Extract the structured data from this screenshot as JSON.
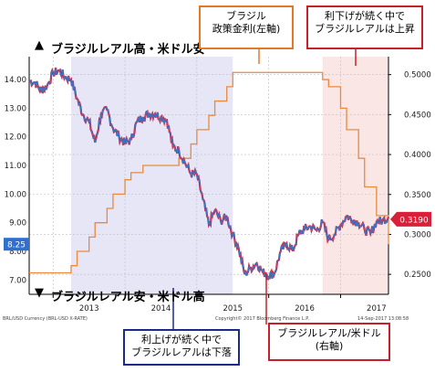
{
  "annotations": {
    "top_headline": "ブラジルレアル高・米ドル安",
    "bottom_headline": "ブラジルレアル安・米ドル高",
    "top_arrow_icon": "▲",
    "bottom_arrow_icon": "▼",
    "policy_rate_box": [
      "ブラジル",
      "政策金利(左軸)"
    ],
    "rate_cut_box": [
      "利下げが続く中で",
      "ブラジルレアルは上昇"
    ],
    "rate_hike_box": [
      "利上げが続く中で",
      "ブラジルレアルは下落"
    ],
    "fx_box": [
      "ブラジルレアル/米ドル",
      "(右軸)"
    ]
  },
  "footer": {
    "left_text": "BRL/USD Currency (BRL-USD X-RATE)",
    "center_text": "Copyright© 2017 Bloomberg Finance L.P.",
    "right_text": "14-Sep-2017 13:08:58"
  },
  "chart_data": {
    "type": "line",
    "x_axis": {
      "tick_labels": [
        "2013",
        "2014",
        "2015",
        "2016",
        "2017"
      ],
      "range": [
        "2012-09",
        "2017-09"
      ]
    },
    "left_axis": {
      "range": [
        6.5,
        14.8
      ],
      "tick_labels": [
        "14.00",
        "13.00",
        "12.00",
        "11.00",
        "10.00",
        "9.00",
        "8.00",
        "7.00"
      ],
      "tick_values": [
        14,
        13,
        12,
        11,
        10,
        9,
        8,
        7
      ],
      "current_value_label": "8.25",
      "current_value": 8.25
    },
    "right_axis": {
      "range": [
        0.225,
        0.5225
      ],
      "tick_labels": [
        "0.5000",
        "0.4500",
        "0.4000",
        "0.3500",
        "0.3000",
        "0.2500"
      ],
      "tick_values": [
        0.5,
        0.45,
        0.4,
        0.35,
        0.3,
        0.25
      ],
      "current_value_label": "0.3190",
      "current_value": 0.319
    },
    "grid": true,
    "shaded_periods": [
      {
        "start": "2013-04",
        "end": "2015-07",
        "color": "#e6e6f7"
      },
      {
        "start": "2016-10",
        "end": "2017-09",
        "color": "#fbe6e6"
      }
    ],
    "series": [
      {
        "axis": "left",
        "color": "#e98a3c",
        "style": "step",
        "points": [
          [
            "2012-09",
            7.25
          ],
          [
            "2013-04",
            7.5
          ],
          [
            "2013-05",
            8.0
          ],
          [
            "2013-07",
            8.5
          ],
          [
            "2013-08",
            9.0
          ],
          [
            "2013-10",
            9.5
          ],
          [
            "2013-11",
            10.0
          ],
          [
            "2014-01",
            10.5
          ],
          [
            "2014-02",
            10.75
          ],
          [
            "2014-04",
            11.0
          ],
          [
            "2014-10",
            11.25
          ],
          [
            "2014-12",
            11.75
          ],
          [
            "2015-01",
            12.25
          ],
          [
            "2015-03",
            12.75
          ],
          [
            "2015-04",
            13.25
          ],
          [
            "2015-06",
            13.75
          ],
          [
            "2015-07",
            14.25
          ],
          [
            "2016-10",
            14.0
          ],
          [
            "2016-11",
            13.75
          ],
          [
            "2017-01",
            13.0
          ],
          [
            "2017-02",
            12.25
          ],
          [
            "2017-04",
            11.25
          ],
          [
            "2017-05",
            10.25
          ],
          [
            "2017-07",
            9.25
          ],
          [
            "2017-09",
            8.25
          ]
        ]
      },
      {
        "axis": "right",
        "color": "#2e7bcf",
        "highlight_color": "#d8203a",
        "style": "line",
        "points": [
          [
            "2012-09",
            0.492
          ],
          [
            "2012-10",
            0.49
          ],
          [
            "2012-11",
            0.48
          ],
          [
            "2012-12",
            0.486
          ],
          [
            "2013-01",
            0.502
          ],
          [
            "2013-02",
            0.505
          ],
          [
            "2013-03",
            0.497
          ],
          [
            "2013-04",
            0.494
          ],
          [
            "2013-05",
            0.47
          ],
          [
            "2013-06",
            0.45
          ],
          [
            "2013-07",
            0.441
          ],
          [
            "2013-08",
            0.415
          ],
          [
            "2013-09",
            0.45
          ],
          [
            "2013-10",
            0.456
          ],
          [
            "2013-11",
            0.433
          ],
          [
            "2013-12",
            0.423
          ],
          [
            "2014-01",
            0.414
          ],
          [
            "2014-02",
            0.418
          ],
          [
            "2014-03",
            0.441
          ],
          [
            "2014-04",
            0.447
          ],
          [
            "2014-05",
            0.451
          ],
          [
            "2014-06",
            0.451
          ],
          [
            "2014-07",
            0.447
          ],
          [
            "2014-08",
            0.443
          ],
          [
            "2014-09",
            0.41
          ],
          [
            "2014-10",
            0.405
          ],
          [
            "2014-11",
            0.39
          ],
          [
            "2014-12",
            0.376
          ],
          [
            "2015-01",
            0.375
          ],
          [
            "2015-02",
            0.344
          ],
          [
            "2015-03",
            0.312
          ],
          [
            "2015-04",
            0.33
          ],
          [
            "2015-05",
            0.317
          ],
          [
            "2015-06",
            0.322
          ],
          [
            "2015-07",
            0.3
          ],
          [
            "2015-08",
            0.282
          ],
          [
            "2015-09",
            0.25
          ],
          [
            "2015-10",
            0.258
          ],
          [
            "2015-11",
            0.264
          ],
          [
            "2015-12",
            0.253
          ],
          [
            "2016-01",
            0.248
          ],
          [
            "2016-02",
            0.252
          ],
          [
            "2016-03",
            0.279
          ],
          [
            "2016-04",
            0.288
          ],
          [
            "2016-05",
            0.28
          ],
          [
            "2016-06",
            0.3
          ],
          [
            "2016-07",
            0.307
          ],
          [
            "2016-08",
            0.31
          ],
          [
            "2016-09",
            0.305
          ],
          [
            "2016-10",
            0.315
          ],
          [
            "2016-11",
            0.294
          ],
          [
            "2016-12",
            0.3
          ],
          [
            "2017-01",
            0.312
          ],
          [
            "2017-02",
            0.323
          ],
          [
            "2017-03",
            0.318
          ],
          [
            "2017-04",
            0.315
          ],
          [
            "2017-05",
            0.306
          ],
          [
            "2017-06",
            0.301
          ],
          [
            "2017-07",
            0.316
          ],
          [
            "2017-08",
            0.317
          ],
          [
            "2017-09",
            0.322
          ]
        ]
      }
    ]
  }
}
